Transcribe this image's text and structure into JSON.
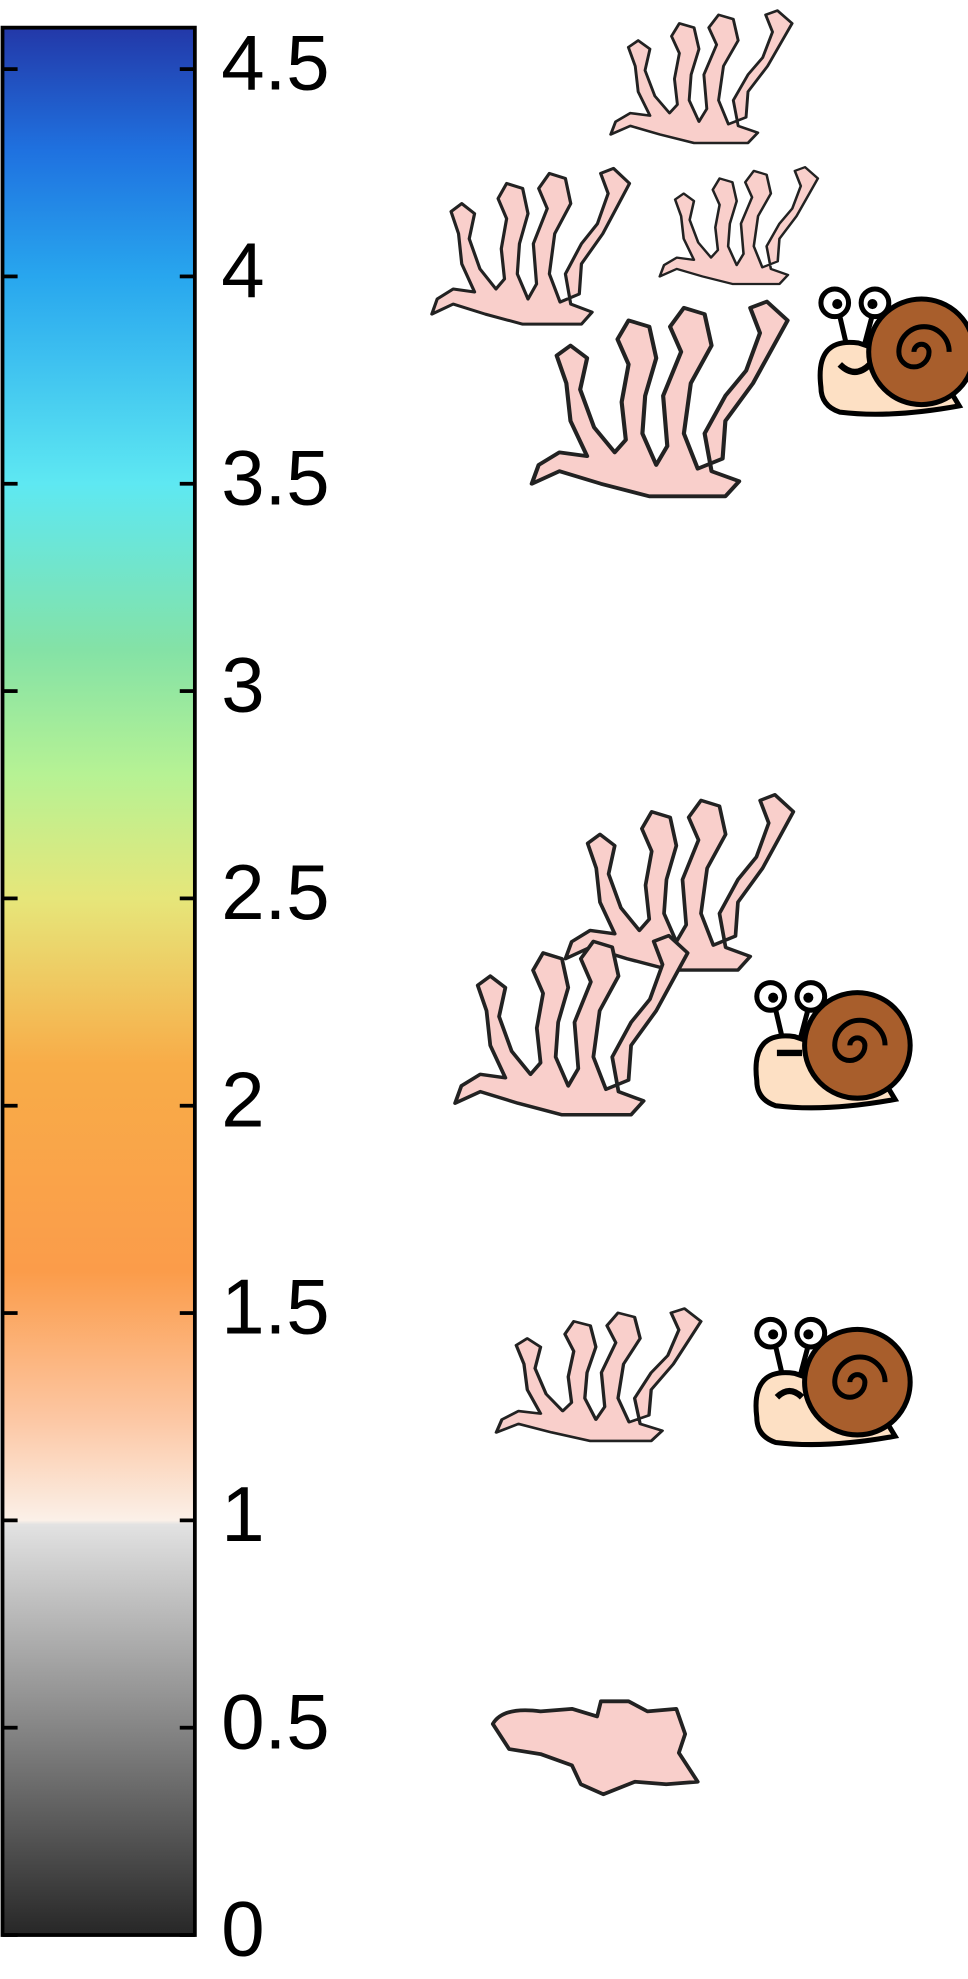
{
  "chart_data": {
    "type": "colorbar",
    "ylim": [
      0,
      4.6
    ],
    "yticks": [
      0,
      0.5,
      1,
      1.5,
      2,
      2.5,
      3,
      3.5,
      4,
      4.5
    ],
    "colormap": [
      {
        "value": 0,
        "color": "#272727"
      },
      {
        "value": 0.99,
        "color": "#e2e2e2"
      },
      {
        "value": 1,
        "color": "#fbf0e8"
      },
      {
        "value": 1.25,
        "color": "#fcc6a2"
      },
      {
        "value": 1.6,
        "color": "#fb9c4a"
      },
      {
        "value": 2.1,
        "color": "#f8ac48"
      },
      {
        "value": 2.5,
        "color": "#e6e67a"
      },
      {
        "value": 2.8,
        "color": "#b6f294"
      },
      {
        "value": 3.1,
        "color": "#84e2a6"
      },
      {
        "value": 3.5,
        "color": "#5ee8f2"
      },
      {
        "value": 4.0,
        "color": "#28a6ee"
      },
      {
        "value": 4.3,
        "color": "#1f72e0"
      },
      {
        "value": 4.6,
        "color": "#2338a8"
      }
    ]
  }
}
